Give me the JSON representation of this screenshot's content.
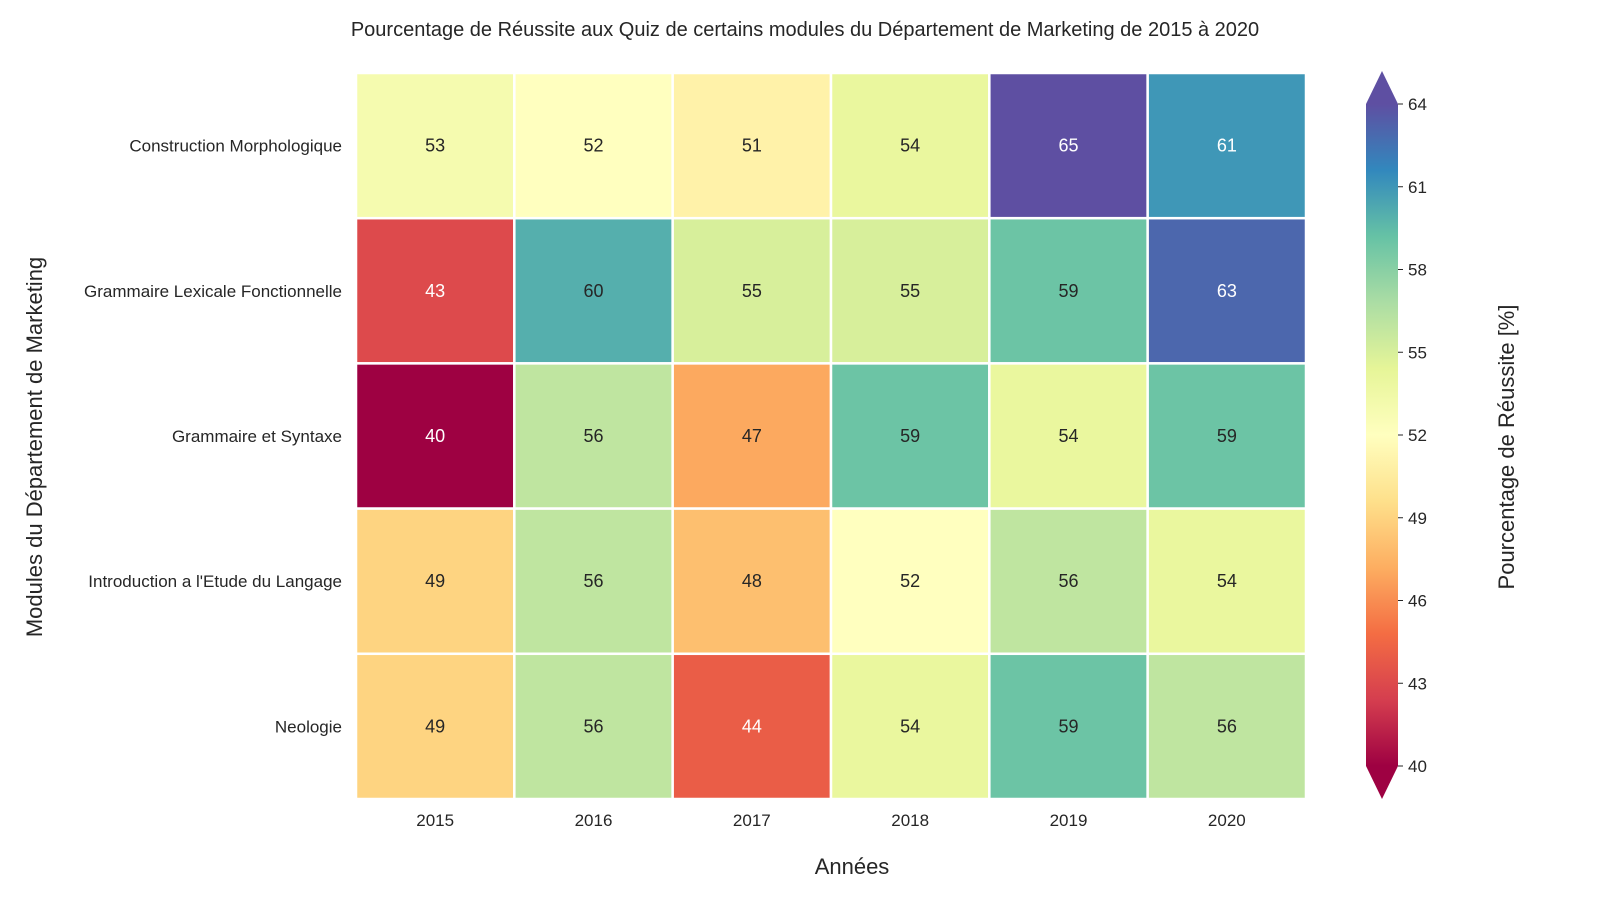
{
  "chart_data": {
    "type": "heatmap",
    "title": "Pourcentage de Réussite aux Quiz de certains modules du Département de Marketing de 2015 à 2020",
    "xlabel": "Années",
    "ylabel": "Modules du Département de Marketing",
    "x_categories": [
      "2015",
      "2016",
      "2017",
      "2018",
      "2019",
      "2020"
    ],
    "y_categories": [
      "Construction Morphologique",
      "Grammaire Lexicale Fonctionnelle",
      "Grammaire et Syntaxe",
      "Introduction a l'Etude du Langage",
      "Neologie"
    ],
    "values": [
      [
        53,
        52,
        51,
        54,
        65,
        61
      ],
      [
        43,
        60,
        55,
        55,
        59,
        63
      ],
      [
        40,
        56,
        47,
        59,
        54,
        59
      ],
      [
        49,
        56,
        48,
        52,
        56,
        54
      ],
      [
        49,
        56,
        44,
        54,
        59,
        56
      ]
    ],
    "colorbar": {
      "label": "Pourcentage de Réussite [%]",
      "vmin": 40,
      "vmax": 64,
      "ticks": [
        "40",
        "43",
        "46",
        "49",
        "52",
        "55",
        "58",
        "61",
        "64"
      ],
      "extend": "both",
      "colormap": "Spectral"
    }
  }
}
